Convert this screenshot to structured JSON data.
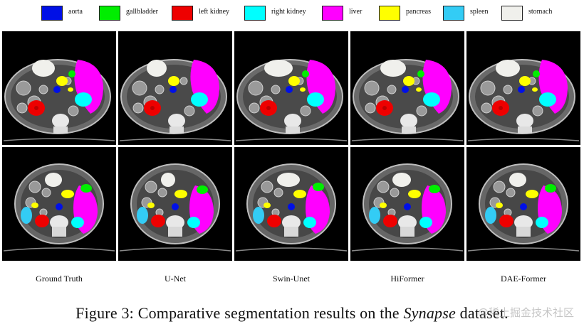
{
  "legend": [
    {
      "label": "aorta",
      "color": "#0010e6"
    },
    {
      "label": "gallbladder",
      "color": "#00ee00"
    },
    {
      "label": "left kidney",
      "color": "#ee0000"
    },
    {
      "label": "right kidney",
      "color": "#00ffff"
    },
    {
      "label": "liver",
      "color": "#ff00ff"
    },
    {
      "label": "pancreas",
      "color": "#ffff00"
    },
    {
      "label": "spleen",
      "color": "#33ccf5"
    },
    {
      "label": "stomach",
      "color": "#f0f0ec"
    }
  ],
  "columns": [
    "Ground Truth",
    "U-Net",
    "Swin-Unet",
    "HiFormer",
    "DAE-Former"
  ],
  "caption": {
    "prefix": "Figure 3: Comparative segmentation results on the ",
    "emphasis": "Synapse",
    "suffix": " dataset."
  },
  "watermark": "@稀土掘金技术社区"
}
